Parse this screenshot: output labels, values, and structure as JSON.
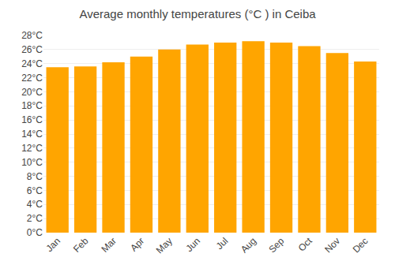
{
  "chart_data": {
    "type": "bar",
    "title": "Average monthly temperatures (°C ) in Ceiba",
    "categories": [
      "Jan",
      "Feb",
      "Mar",
      "Apr",
      "May",
      "Jun",
      "Jul",
      "Aug",
      "Sep",
      "Oct",
      "Nov",
      "Dec"
    ],
    "values": [
      23.5,
      23.6,
      24.2,
      25.0,
      26.0,
      26.7,
      27.0,
      27.2,
      27.0,
      26.5,
      25.5,
      24.3
    ],
    "color": "#FFA500",
    "ylim": [
      0,
      28
    ],
    "yticks": [
      {
        "value": 0,
        "label": "0°C"
      },
      {
        "value": 2,
        "label": "2°C"
      },
      {
        "value": 4,
        "label": "4°C"
      },
      {
        "value": 6,
        "label": "6°C"
      },
      {
        "value": 8,
        "label": "8°C"
      },
      {
        "value": 10,
        "label": "10°C"
      },
      {
        "value": 12,
        "label": "12°C"
      },
      {
        "value": 14,
        "label": "14°C"
      },
      {
        "value": 16,
        "label": "16°C"
      },
      {
        "value": 18,
        "label": "18°C"
      },
      {
        "value": 20,
        "label": "20°C"
      },
      {
        "value": 22,
        "label": "22°C"
      },
      {
        "value": 24,
        "label": "24°C"
      },
      {
        "value": 26,
        "label": "26°C"
      },
      {
        "value": 28,
        "label": "28°C"
      }
    ],
    "grid": true
  }
}
